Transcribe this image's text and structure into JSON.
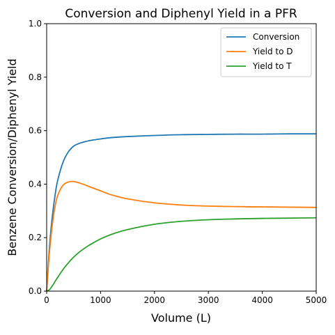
{
  "chart_data": {
    "type": "line",
    "title": "Conversion and Diphenyl Yield in a PFR",
    "xlabel": "Volume (L)",
    "ylabel": "Benzene Conversion/Diphenyl Yield",
    "xlim": [
      0,
      5000
    ],
    "ylim": [
      0,
      1.0
    ],
    "x_ticks": [
      0,
      1000,
      2000,
      3000,
      4000,
      5000
    ],
    "x_tick_labels": [
      "0",
      "1000",
      "2000",
      "3000",
      "4000",
      "5000"
    ],
    "y_ticks": [
      0,
      0.2,
      0.4,
      0.6,
      0.8,
      1.0
    ],
    "y_tick_labels": [
      "0.0",
      "0.2",
      "0.4",
      "0.6",
      "0.8",
      "1.0"
    ],
    "grid": false,
    "legend_position": "top-right",
    "x": [
      0,
      50,
      100,
      150,
      200,
      300,
      400,
      500,
      600,
      700,
      800,
      1000,
      1200,
      1500,
      2000,
      2500,
      3000,
      3500,
      4000,
      4500,
      5000
    ],
    "series": [
      {
        "name": "Conversion",
        "color": "#1f77b4",
        "values": [
          0.0,
          0.16,
          0.27,
          0.35,
          0.41,
          0.48,
          0.52,
          0.542,
          0.552,
          0.558,
          0.563,
          0.569,
          0.574,
          0.578,
          0.582,
          0.585,
          0.586,
          0.587,
          0.587,
          0.588,
          0.588
        ]
      },
      {
        "name": "Yield to D",
        "color": "#ff7f0e",
        "values": [
          0.0,
          0.14,
          0.24,
          0.31,
          0.355,
          0.395,
          0.408,
          0.41,
          0.405,
          0.398,
          0.39,
          0.375,
          0.36,
          0.345,
          0.33,
          0.322,
          0.318,
          0.316,
          0.315,
          0.314,
          0.313
        ]
      },
      {
        "name": "Yield to T",
        "color": "#2ca02c",
        "values": [
          0.0,
          0.005,
          0.018,
          0.034,
          0.05,
          0.08,
          0.105,
          0.127,
          0.145,
          0.16,
          0.173,
          0.195,
          0.212,
          0.23,
          0.25,
          0.261,
          0.267,
          0.27,
          0.272,
          0.273,
          0.274
        ]
      }
    ]
  }
}
